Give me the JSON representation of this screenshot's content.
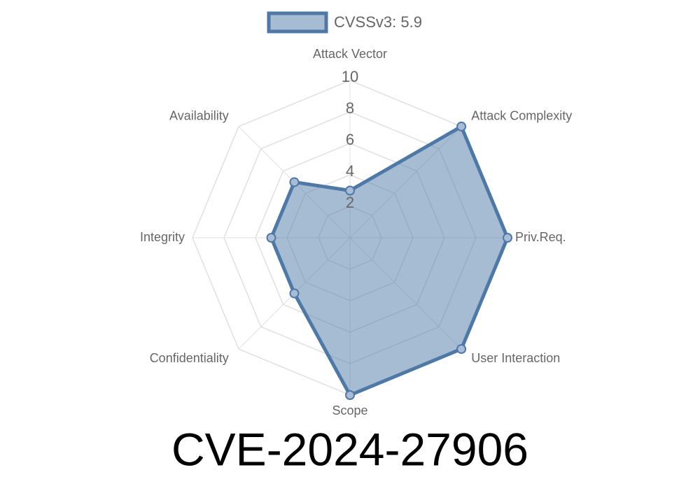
{
  "chart_data": {
    "type": "radar",
    "title": "CVE-2024-27906",
    "categories": [
      "Attack Vector",
      "Attack Complexity",
      "Priv.Req.",
      "User Interaction",
      "Scope",
      "Confidentiality",
      "Integrity",
      "Availability"
    ],
    "series": [
      {
        "name": "CVSSv3: 5.9",
        "color": "#4e79a7",
        "values": [
          3,
          10,
          10,
          10,
          10,
          5,
          5,
          5
        ]
      }
    ],
    "rlim": [
      0,
      10
    ],
    "rticks": [
      2,
      4,
      6,
      8,
      10
    ],
    "grid": true,
    "legend": "top"
  }
}
